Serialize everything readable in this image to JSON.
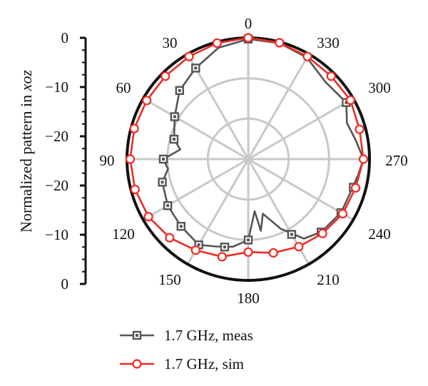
{
  "chart_data": {
    "type": "polar",
    "ylabel": {
      "prefix": "Normalized pattern in ",
      "var": "xoz"
    },
    "radial_ticks": [
      {
        "label": "0",
        "value": 0
      },
      {
        "label": "−10",
        "value": -10
      },
      {
        "label": "−20",
        "value": -20
      },
      {
        "label": "−20",
        "value": -20
      },
      {
        "label": "−10",
        "value": -10
      },
      {
        "label": "0",
        "value": 0
      }
    ],
    "radial_range": [
      -30,
      0
    ],
    "angle_labels": [
      "0",
      "30",
      "60",
      "90",
      "120",
      "150",
      "180",
      "210",
      "240",
      "270",
      "300",
      "330"
    ],
    "angle_direction": "counterclockwise",
    "zero_at": "top",
    "legend": {
      "position": "bottom"
    },
    "series": [
      {
        "name": "1.7 GHz, meas",
        "color": "#555555",
        "marker": "square",
        "points": [
          [
            0,
            -0.3
          ],
          [
            15,
            -1.5
          ],
          [
            30,
            -4
          ],
          [
            45,
            -6
          ],
          [
            60,
            -9
          ],
          [
            75,
            -11
          ],
          [
            82,
            -13
          ],
          [
            90,
            -9
          ],
          [
            97,
            -10
          ],
          [
            105,
            -8
          ],
          [
            120,
            -7
          ],
          [
            135,
            -6.5
          ],
          [
            150,
            -5.5
          ],
          [
            160,
            -7
          ],
          [
            170,
            -8
          ],
          [
            180,
            -10
          ],
          [
            187,
            -17
          ],
          [
            190,
            -12
          ],
          [
            195,
            -16
          ],
          [
            205,
            -11
          ],
          [
            215,
            -6
          ],
          [
            225,
            -4.5
          ],
          [
            240,
            -3.5
          ],
          [
            250,
            -3.5
          ],
          [
            262,
            -2.5
          ],
          [
            270,
            -1.5
          ],
          [
            280,
            -3
          ],
          [
            290,
            -4
          ],
          [
            300,
            -2
          ],
          [
            315,
            -3
          ],
          [
            330,
            -1
          ],
          [
            345,
            -0.3
          ],
          [
            360,
            -0.3
          ]
        ],
        "marker_angles": [
          0,
          30,
          45,
          60,
          75,
          90,
          105,
          120,
          135,
          150,
          165,
          180,
          210,
          225,
          240,
          255,
          300
        ]
      },
      {
        "name": "1.7 GHz, sim",
        "color": "#ee2b25",
        "marker": "circle",
        "points": [
          [
            0,
            0
          ],
          [
            15,
            -0.3
          ],
          [
            30,
            -0.7
          ],
          [
            45,
            -1
          ],
          [
            60,
            -1
          ],
          [
            75,
            -0.8
          ],
          [
            90,
            -0.8
          ],
          [
            105,
            -1
          ],
          [
            120,
            -1.5
          ],
          [
            135,
            -2.5
          ],
          [
            150,
            -4
          ],
          [
            165,
            -5
          ],
          [
            180,
            -7
          ],
          [
            195,
            -6
          ],
          [
            210,
            -5
          ],
          [
            225,
            -4
          ],
          [
            240,
            -3
          ],
          [
            255,
            -2.5
          ],
          [
            270,
            -1.5
          ],
          [
            285,
            -1.5
          ],
          [
            300,
            -0.8
          ],
          [
            315,
            -1
          ],
          [
            330,
            -0.7
          ],
          [
            345,
            -0.2
          ],
          [
            360,
            0
          ]
        ],
        "marker_angles": [
          0,
          15,
          30,
          45,
          60,
          75,
          90,
          105,
          120,
          135,
          150,
          165,
          180,
          195,
          210,
          225,
          240,
          255,
          270,
          285,
          300,
          315,
          330,
          345
        ]
      }
    ]
  }
}
